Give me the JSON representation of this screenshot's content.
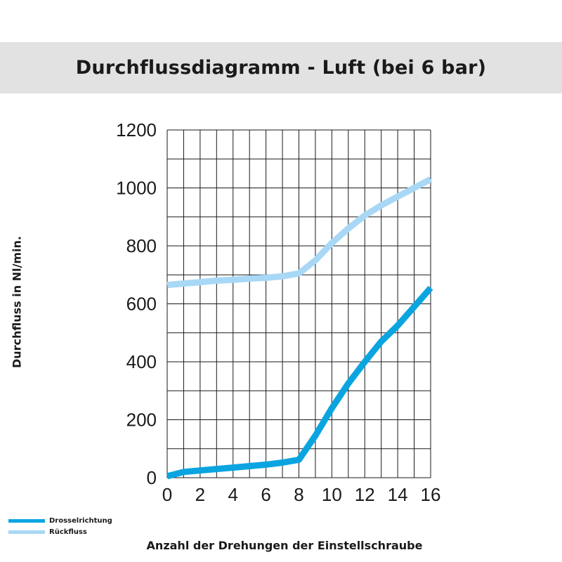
{
  "chart_data": {
    "type": "line",
    "title": "Durchflussdiagramm - Luft (bei 6 bar)",
    "xlabel": "Anzahl der Drehungen der Einstellschraube",
    "ylabel": "Durchfluss in Nl/min.",
    "xlim": [
      0,
      16
    ],
    "ylim": [
      0,
      1200
    ],
    "x_ticks": [
      "0",
      "2",
      "4",
      "6",
      "8",
      "10",
      "12",
      "14",
      "16"
    ],
    "y_ticks": [
      "0",
      "200",
      "400",
      "600",
      "800",
      "1000",
      "1200"
    ],
    "grid": true,
    "legend_position": "bottom-left",
    "series": [
      {
        "name": "Drosselrichtung",
        "color": "#0aa5e0",
        "x": [
          0,
          1,
          2,
          3,
          4,
          5,
          6,
          7,
          8,
          9,
          10,
          11,
          12,
          13,
          14,
          15,
          16
        ],
        "y": [
          5,
          20,
          25,
          30,
          35,
          40,
          45,
          52,
          62,
          145,
          240,
          325,
          400,
          470,
          525,
          590,
          655
        ]
      },
      {
        "name": "Rückfluss",
        "color": "#a8d8f5",
        "x": [
          0,
          1,
          2,
          3,
          4,
          5,
          6,
          7,
          8,
          9,
          10,
          11,
          12,
          13,
          14,
          15,
          16
        ],
        "y": [
          665,
          670,
          675,
          680,
          683,
          687,
          690,
          695,
          705,
          750,
          810,
          860,
          905,
          940,
          970,
          1000,
          1030
        ]
      }
    ]
  }
}
